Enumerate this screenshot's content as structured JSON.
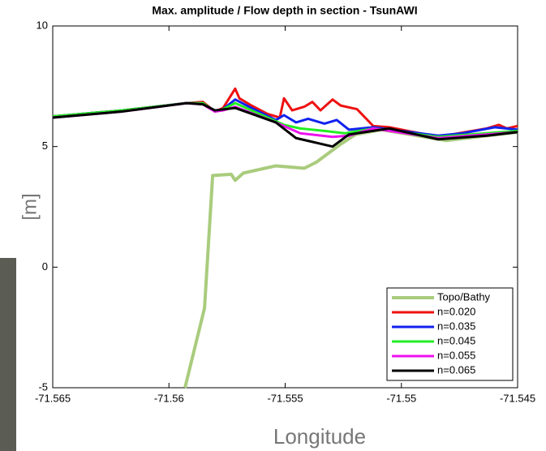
{
  "chart_data": {
    "type": "line",
    "title": "Max. amplitude / Flow depth in section - TsunAWI",
    "x_label": "Longitude",
    "y_label": "[m]",
    "xlim": [
      -71.565,
      -71.545
    ],
    "xticks": [
      -71.565,
      -71.56,
      -71.555,
      -71.55,
      -71.545
    ],
    "ylim": [
      -5,
      10
    ],
    "yticks": [
      -5,
      0,
      5,
      10
    ],
    "grid": false,
    "legend": "lower right",
    "series": [
      {
        "name": "Topo/Bathy",
        "color": "#a9cc7d",
        "x": [
          -71.55931,
          -71.55847,
          -71.55812,
          -71.55732,
          -71.55715,
          -71.5568,
          -71.5554,
          -71.55418,
          -71.55366,
          -71.55261,
          -71.55198,
          -71.55087,
          -71.54807,
          -71.545
        ],
        "values": [
          -5,
          -1.7,
          3.8,
          3.85,
          3.6,
          3.9,
          4.2,
          4.1,
          4.35,
          5.1,
          5.5,
          5.7,
          5.25,
          5.6
        ]
      },
      {
        "name": "n=0.020",
        "color": "#ee1111",
        "x": [
          -71.565,
          -71.56203,
          -71.55924,
          -71.55854,
          -71.55802,
          -71.55767,
          -71.55715,
          -71.55697,
          -71.55645,
          -71.55575,
          -71.55523,
          -71.55505,
          -71.5547,
          -71.55418,
          -71.55383,
          -71.55348,
          -71.55296,
          -71.55261,
          -71.55191,
          -71.55121,
          -71.55052,
          -71.54842,
          -71.54633,
          -71.54581,
          -71.54546,
          -71.545
        ],
        "values": [
          6.25,
          6.5,
          6.8,
          6.85,
          6.45,
          6.6,
          7.4,
          7.0,
          6.7,
          6.35,
          6.2,
          7.0,
          6.5,
          6.65,
          6.85,
          6.5,
          6.95,
          6.7,
          6.55,
          5.85,
          5.8,
          5.4,
          5.75,
          5.9,
          5.75,
          5.85
        ]
      },
      {
        "name": "n=0.035",
        "color": "#1122ee",
        "x": [
          -71.565,
          -71.56203,
          -71.55924,
          -71.55854,
          -71.55802,
          -71.55767,
          -71.55715,
          -71.55645,
          -71.5554,
          -71.55505,
          -71.55453,
          -71.55401,
          -71.55331,
          -71.55278,
          -71.55226,
          -71.55121,
          -71.54842,
          -71.54737,
          -71.54598,
          -71.545
        ],
        "values": [
          6.25,
          6.5,
          6.8,
          6.8,
          6.45,
          6.55,
          6.95,
          6.6,
          6.1,
          6.3,
          6.0,
          6.15,
          5.95,
          6.1,
          5.7,
          5.8,
          5.45,
          5.55,
          5.8,
          5.7
        ]
      },
      {
        "name": "n=0.045",
        "color": "#22ee22",
        "x": [
          -71.565,
          -71.56203,
          -71.55924,
          -71.55854,
          -71.55802,
          -71.55767,
          -71.55715,
          -71.55575,
          -71.55505,
          -71.55435,
          -71.55331,
          -71.55243,
          -71.55121,
          -71.54842,
          -71.545
        ],
        "values": [
          6.25,
          6.5,
          6.8,
          6.8,
          6.45,
          6.55,
          6.8,
          6.2,
          5.9,
          5.75,
          5.65,
          5.55,
          5.75,
          5.4,
          5.65
        ]
      },
      {
        "name": "n=0.055",
        "color": "#ee11ee",
        "x": [
          -71.565,
          -71.56203,
          -71.55924,
          -71.55854,
          -71.55802,
          -71.55767,
          -71.55715,
          -71.5554,
          -71.55435,
          -71.55296,
          -71.55226,
          -71.55121,
          -71.54842,
          -71.545
        ],
        "values": [
          6.2,
          6.45,
          6.8,
          6.75,
          6.45,
          6.5,
          6.65,
          6.0,
          5.55,
          5.4,
          5.45,
          5.75,
          5.35,
          5.6
        ]
      },
      {
        "name": "n=0.065",
        "color": "#000000",
        "x": [
          -71.565,
          -71.56203,
          -71.55924,
          -71.55854,
          -71.55802,
          -71.55715,
          -71.5554,
          -71.55453,
          -71.55296,
          -71.55226,
          -71.55052,
          -71.54842,
          -71.54633,
          -71.545
        ],
        "values": [
          6.2,
          6.45,
          6.8,
          6.75,
          6.5,
          6.6,
          6.0,
          5.35,
          5.0,
          5.5,
          5.75,
          5.3,
          5.45,
          5.6
        ]
      }
    ]
  }
}
